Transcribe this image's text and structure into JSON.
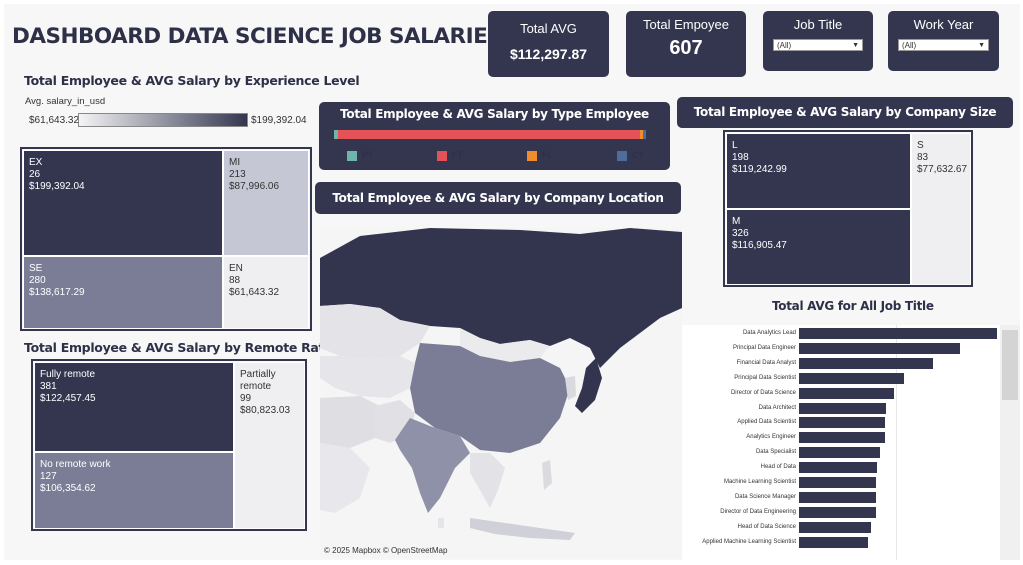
{
  "header": {
    "title": "DASHBOARD DATA SCIENCE JOB SALARIES"
  },
  "kpis": {
    "total_avg": {
      "label": "Total AVG",
      "value": "$112,297.87"
    },
    "total_employee": {
      "label": "Total Empoyee",
      "value": "607"
    }
  },
  "filters": {
    "job_title": {
      "label": "Job Title",
      "selected": "(All)"
    },
    "work_year": {
      "label": "Work Year",
      "selected": "(All)"
    }
  },
  "experience": {
    "title": "Total Employee & AVG Salary by Experience Level",
    "legend_field": "Avg. salary_in_usd",
    "legend_min": "$61,643.32",
    "legend_max": "$199,392.04",
    "cells": [
      {
        "code": "EX",
        "count": "26",
        "avg": "$199,392.04"
      },
      {
        "code": "MI",
        "count": "213",
        "avg": "$87,996.06"
      },
      {
        "code": "SE",
        "count": "280",
        "avg": "$138,617.29"
      },
      {
        "code": "EN",
        "count": "88",
        "avg": "$61,643.32"
      }
    ]
  },
  "remote": {
    "title": "Total Employee & AVG Salary by Remote Ratio",
    "cells": [
      {
        "name": "Fully remote",
        "count": "381",
        "avg": "$122,457.45"
      },
      {
        "name": "No remote work",
        "count": "127",
        "avg": "$106,354.62"
      },
      {
        "name": "Partially remote",
        "count": "99",
        "avg": "$80,823.03"
      }
    ]
  },
  "type_employee": {
    "title": "Total Employee & AVG Salary by Type Employee",
    "legend": [
      {
        "label": "PT",
        "color": "#6db5aa"
      },
      {
        "label": "FT",
        "color": "#e25257"
      },
      {
        "label": "FL",
        "color": "#f08c2e"
      },
      {
        "label": "CT",
        "color": "#4f6d9b"
      }
    ]
  },
  "location": {
    "title": "Total Employee & AVG Salary by Company Location",
    "attribution": "© 2025 Mapbox  © OpenStreetMap"
  },
  "company_size": {
    "title": "Total Employee & AVG Salary by Company Size",
    "cells": [
      {
        "code": "L",
        "count": "198",
        "avg": "$119,242.99"
      },
      {
        "code": "S",
        "count": "83",
        "avg": "$77,632.67"
      },
      {
        "code": "M",
        "count": "326",
        "avg": "$116,905.47"
      }
    ]
  },
  "chart_data": {
    "type": "bar",
    "title": "Total AVG for All Job Title",
    "orientation": "horizontal",
    "categories": [
      "Data Analytics Lead",
      "Principal Data Engineer",
      "Financial Data Analyst",
      "Principal Data Scientist",
      "Director of Data Science",
      "Data Architect",
      "Applied Data Scientist",
      "Analytics Engineer",
      "Data Specialist",
      "Head of Data",
      "Machine Learning Scientist",
      "Data Science Manager",
      "Director of Data Engineering",
      "Head of Data Science",
      "Applied Machine Learning Scientist"
    ],
    "values": [
      405000,
      328333,
      275000,
      215242,
      195074,
      177874,
      175655,
      175000,
      165000,
      160162,
      158413,
      158328,
      156738,
      146719,
      142069
    ],
    "xlim": [
      0,
      405000
    ]
  }
}
